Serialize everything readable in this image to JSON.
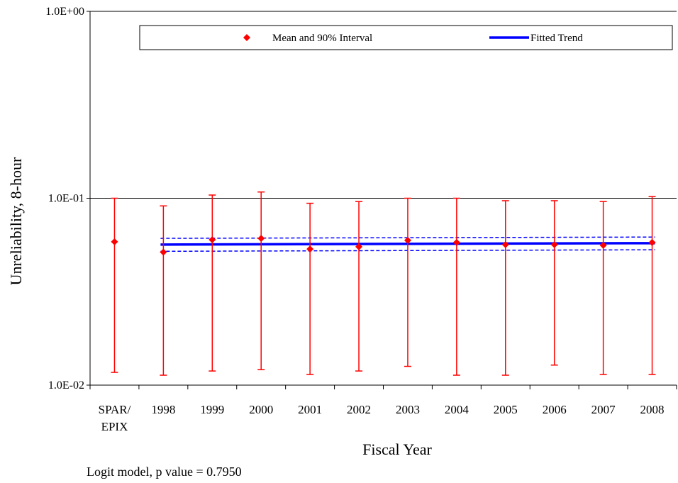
{
  "chart_data": {
    "type": "scatter",
    "xlabel": "Fiscal Year",
    "ylabel": "Unreliability, 8-hour",
    "yscale": "log",
    "ylim": [
      0.01,
      1.0
    ],
    "y_tick_labels": [
      "1.0E-02",
      "1.0E-01",
      "1.0E+00"
    ],
    "y_tick_values": [
      0.01,
      0.1,
      1.0
    ],
    "grid": "horizontal major gridlines",
    "legend_placement": "top",
    "categories": [
      {
        "lines": [
          "SPAR/",
          "EPIX"
        ]
      },
      {
        "lines": [
          "1998"
        ]
      },
      {
        "lines": [
          "1999"
        ]
      },
      {
        "lines": [
          "2000"
        ]
      },
      {
        "lines": [
          "2001"
        ]
      },
      {
        "lines": [
          "2002"
        ]
      },
      {
        "lines": [
          "2003"
        ]
      },
      {
        "lines": [
          "2004"
        ]
      },
      {
        "lines": [
          "2005"
        ]
      },
      {
        "lines": [
          "2006"
        ]
      },
      {
        "lines": [
          "2007"
        ]
      },
      {
        "lines": [
          "2008"
        ]
      }
    ],
    "series": [
      {
        "name": "Mean and 90% Interval",
        "color": "#ff0000",
        "marker": "diamond",
        "mean": [
          0.0585,
          0.0515,
          0.06,
          0.061,
          0.0535,
          0.055,
          0.0595,
          0.058,
          0.0565,
          0.0565,
          0.056,
          0.058
        ],
        "lower": [
          0.0117,
          0.0113,
          0.0119,
          0.0121,
          0.0114,
          0.0119,
          0.0126,
          0.0113,
          0.0113,
          0.0128,
          0.0114,
          0.0114
        ],
        "upper": [
          0.1,
          0.091,
          0.104,
          0.108,
          0.094,
          0.096,
          0.1,
          0.1,
          0.097,
          0.097,
          0.096,
          0.102
        ]
      },
      {
        "name": "Fitted Trend",
        "color": "#0000ff",
        "x_start_index": 1,
        "x_end_index": 11,
        "fit_start": 0.0565,
        "fit_end": 0.0575,
        "band_lower": [
          0.052,
          0.053
        ],
        "band_upper": [
          0.061,
          0.062
        ]
      }
    ]
  },
  "footnote": "Logit model, p value = 0.7950"
}
